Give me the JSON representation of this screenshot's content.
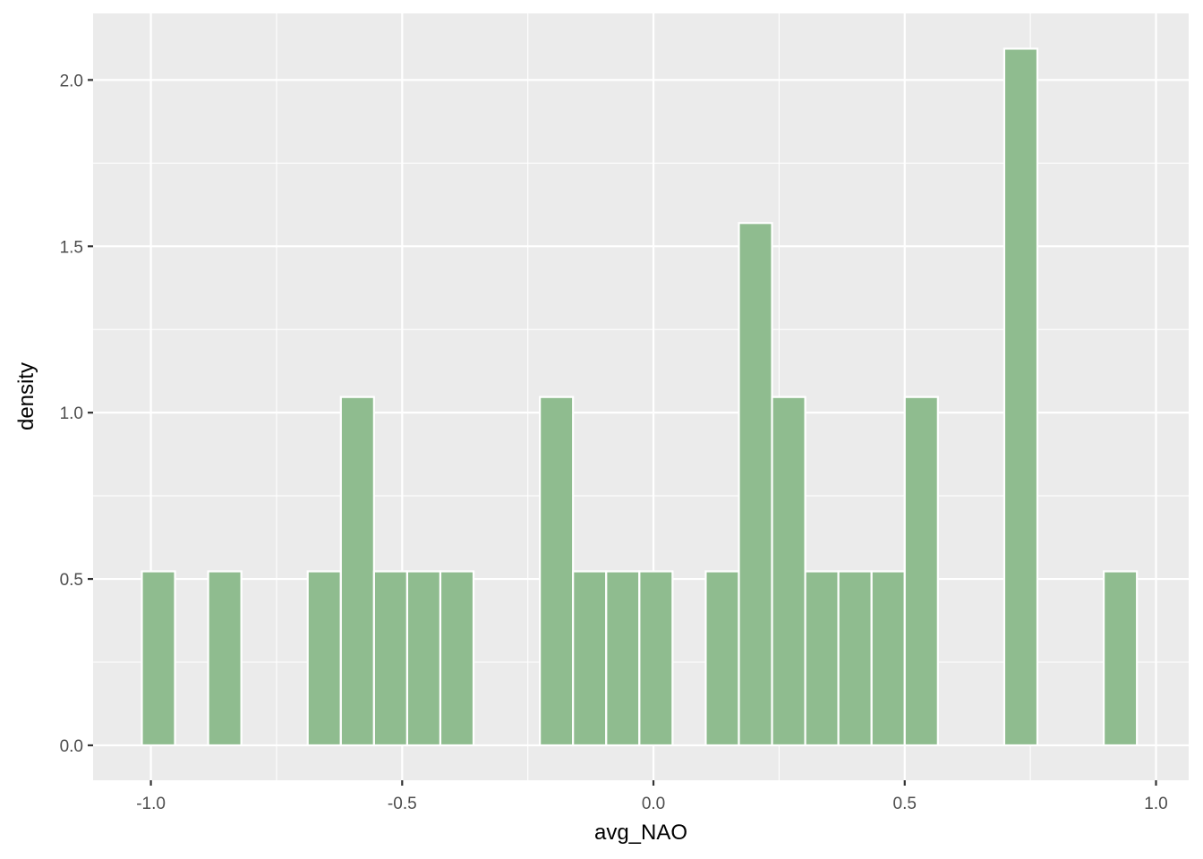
{
  "chart_data": {
    "type": "bar",
    "subtype": "histogram",
    "title": "",
    "xlabel": "avg_NAO",
    "ylabel": "density",
    "xlim": [
      -1.115,
      1.065
    ],
    "ylim": [
      -0.105,
      2.2
    ],
    "xticks": [
      -1.0,
      -0.5,
      0.0,
      0.5,
      1.0
    ],
    "xtick_labels": [
      "-1.0",
      "-0.5",
      "0.0",
      "0.5",
      "1.0"
    ],
    "yticks": [
      0.0,
      0.5,
      1.0,
      1.5,
      2.0
    ],
    "ytick_labels": [
      "0.0",
      "0.5",
      "1.0",
      "1.5",
      "2.0"
    ],
    "grid": true,
    "bin_width": 0.066,
    "bins": [
      {
        "x": -0.985,
        "y": 0.523
      },
      {
        "x": -0.853,
        "y": 0.523
      },
      {
        "x": -0.655,
        "y": 0.523
      },
      {
        "x": -0.589,
        "y": 1.047
      },
      {
        "x": -0.523,
        "y": 0.523
      },
      {
        "x": -0.457,
        "y": 0.523
      },
      {
        "x": -0.391,
        "y": 0.523
      },
      {
        "x": -0.193,
        "y": 1.047
      },
      {
        "x": -0.127,
        "y": 0.523
      },
      {
        "x": -0.061,
        "y": 0.523
      },
      {
        "x": 0.005,
        "y": 0.523
      },
      {
        "x": 0.137,
        "y": 0.523
      },
      {
        "x": 0.203,
        "y": 1.57
      },
      {
        "x": 0.269,
        "y": 1.047
      },
      {
        "x": 0.335,
        "y": 0.523
      },
      {
        "x": 0.401,
        "y": 0.523
      },
      {
        "x": 0.467,
        "y": 0.523
      },
      {
        "x": 0.533,
        "y": 1.047
      },
      {
        "x": 0.731,
        "y": 2.094
      },
      {
        "x": 0.929,
        "y": 0.523
      }
    ],
    "colors": {
      "bar_fill": "#8fbc8f",
      "bar_outline": "#ffffff",
      "panel_bg": "#ebebeb",
      "grid": "#ffffff"
    }
  }
}
